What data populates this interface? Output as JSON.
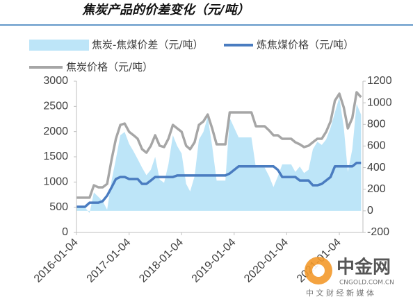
{
  "chart_data": {
    "type": "line",
    "title": "焦炭产品的价差变化（元/吨）",
    "x": [
      "2016-01-04",
      "2016-02-04",
      "2016-03-04",
      "2016-04-04",
      "2016-05-04",
      "2016-06-04",
      "2016-07-04",
      "2016-08-04",
      "2016-09-04",
      "2016-10-04",
      "2016-11-04",
      "2016-12-04",
      "2017-01-04",
      "2017-02-04",
      "2017-03-04",
      "2017-04-04",
      "2017-05-04",
      "2017-06-04",
      "2017-07-04",
      "2017-08-04",
      "2017-09-04",
      "2017-10-04",
      "2017-11-04",
      "2017-12-04",
      "2018-01-04",
      "2018-02-04",
      "2018-03-04",
      "2018-04-04",
      "2018-05-04",
      "2018-06-04",
      "2018-07-04",
      "2018-08-04",
      "2018-09-04",
      "2018-10-04",
      "2018-11-04",
      "2018-12-04",
      "2019-01-04",
      "2019-02-04",
      "2019-03-04",
      "2019-04-04",
      "2019-05-04",
      "2019-06-04",
      "2019-07-04",
      "2019-08-04",
      "2019-09-04",
      "2019-10-04",
      "2019-11-04",
      "2019-12-04",
      "2020-01-04",
      "2020-02-04",
      "2020-03-04",
      "2020-04-04",
      "2020-05-04",
      "2020-06-04",
      "2020-07-04",
      "2020-08-04",
      "2020-09-04",
      "2020-10-04",
      "2020-11-04",
      "2020-12-04",
      "2021-01-04",
      "2021-02-04",
      "2021-03-04",
      "2021-04-04",
      "2021-05-04",
      "2021-06-04"
    ],
    "series": [
      {
        "name": "焦炭-焦煤价差（元/吨）",
        "kind": "area",
        "axis": "y2",
        "color": "#bde5f8",
        "values": [
          30,
          30,
          30,
          -20,
          170,
          130,
          90,
          10,
          280,
          480,
          700,
          730,
          620,
          550,
          480,
          400,
          330,
          380,
          500,
          290,
          260,
          430,
          700,
          600,
          530,
          250,
          180,
          320,
          660,
          730,
          870,
          600,
          280,
          280,
          280,
          860,
          770,
          680,
          680,
          680,
          680,
          400,
          400,
          400,
          320,
          220,
          320,
          430,
          430,
          430,
          360,
          410,
          350,
          380,
          570,
          640,
          610,
          660,
          770,
          910,
          1050,
          770,
          360,
          570,
          990,
          890
        ]
      },
      {
        "name": "炼焦煤价格（元/吨）",
        "kind": "line",
        "color": "#4a7cc0",
        "values": [
          510,
          510,
          510,
          590,
          590,
          590,
          620,
          730,
          895,
          1060,
          1100,
          1100,
          1060,
          1060,
          1060,
          963,
          963,
          1030,
          1100,
          1100,
          1100,
          1100,
          1100,
          1130,
          1130,
          1130,
          1130,
          1130,
          1130,
          1130,
          1130,
          1130,
          1130,
          1130,
          1130,
          1170,
          1240,
          1310,
          1310,
          1310,
          1310,
          1310,
          1310,
          1310,
          1310,
          1310,
          1240,
          1100,
          1100,
          1100,
          1100,
          1030,
          1030,
          1030,
          935,
          935,
          963,
          1030,
          1100,
          1310,
          1310,
          1310,
          1310,
          1310,
          1380,
          1380
        ]
      },
      {
        "name": "焦炭价格（元/吨）",
        "kind": "line",
        "color": "#a6a6a6",
        "values": [
          690,
          690,
          690,
          690,
          935,
          895,
          895,
          963,
          1445,
          1858,
          2133,
          2160,
          1995,
          1927,
          1858,
          1651,
          1582,
          1720,
          1927,
          1720,
          1693,
          1858,
          2133,
          2064,
          1995,
          1720,
          1651,
          1789,
          2133,
          2202,
          2339,
          2064,
          1748,
          1748,
          1748,
          2381,
          2381,
          2381,
          2381,
          2381,
          2381,
          2106,
          2106,
          2106,
          2023,
          1927,
          1927,
          1858,
          1858,
          1858,
          1789,
          1748,
          1693,
          1720,
          1789,
          1858,
          1858,
          1995,
          2202,
          2614,
          2752,
          2477,
          2064,
          2270,
          2780,
          2683
        ]
      }
    ],
    "xlim": [
      "2016-01-04",
      "2021-06-17"
    ],
    "xticks": [
      "2016-01-04",
      "2017-01-04",
      "2018-01-04",
      "2019-01-04",
      "2020-01-04",
      "2021-01-04"
    ],
    "ylim": [
      0,
      3000
    ],
    "yticks": [
      0,
      500,
      1000,
      1500,
      2000,
      2500,
      3000
    ],
    "y2lim": [
      -200,
      1200
    ],
    "y2ticks": [
      -200,
      0,
      200,
      400,
      600,
      800,
      1000,
      1200
    ],
    "watermark": {
      "brand": "中金网",
      "site": "CNGOLD.COM.CN",
      "slogan": "中 文 财 经 新 媒 体"
    }
  }
}
